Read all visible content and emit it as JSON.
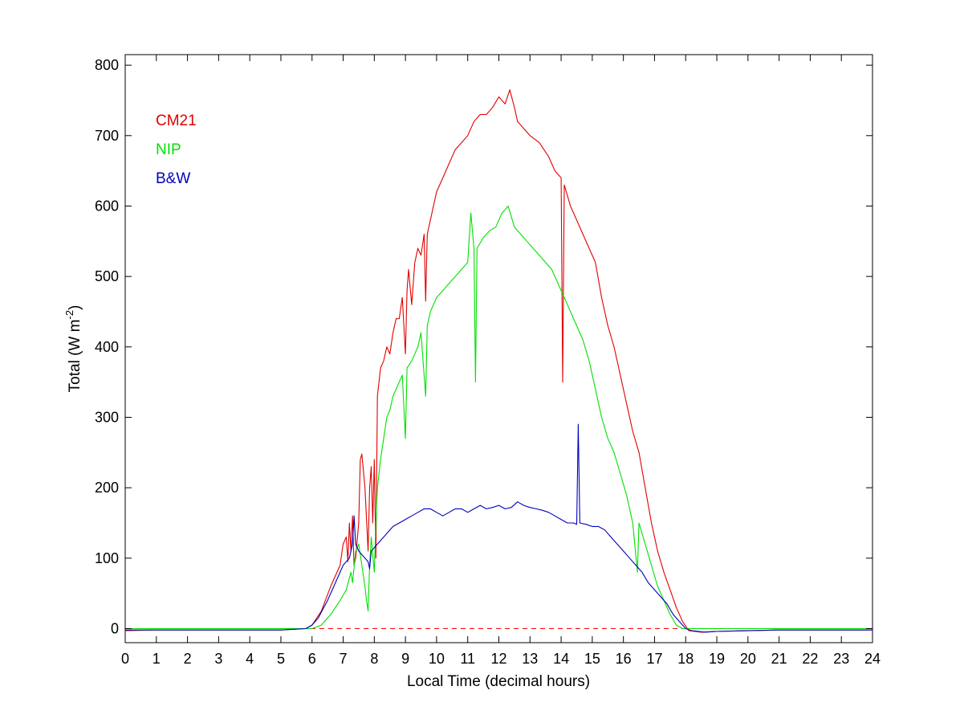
{
  "chart_data": {
    "type": "line",
    "xlabel": "Local Time (decimal hours)",
    "ylabel_main": "Total (W m",
    "ylabel_sup": "-2",
    "ylabel_close": ")",
    "xlim": [
      0,
      24
    ],
    "ylim": [
      -20,
      815
    ],
    "xticks": [
      0,
      1,
      2,
      3,
      4,
      5,
      6,
      7,
      8,
      9,
      10,
      11,
      12,
      13,
      14,
      15,
      16,
      17,
      18,
      19,
      20,
      21,
      22,
      23,
      24
    ],
    "yticks": [
      0,
      100,
      200,
      300,
      400,
      500,
      600,
      700,
      800
    ],
    "grid": false,
    "legend_position": "top-left",
    "zero_line": {
      "y": 0,
      "color": "#ff0000",
      "style": "dashed"
    },
    "series": [
      {
        "name": "CM21",
        "color": "#e00000",
        "points": [
          [
            0,
            -3
          ],
          [
            1,
            -2
          ],
          [
            2,
            -2
          ],
          [
            3,
            -2
          ],
          [
            4,
            -2
          ],
          [
            5,
            -2
          ],
          [
            5.8,
            0
          ],
          [
            6.0,
            5
          ],
          [
            6.3,
            25
          ],
          [
            6.6,
            60
          ],
          [
            6.9,
            90
          ],
          [
            7.0,
            120
          ],
          [
            7.1,
            130
          ],
          [
            7.15,
            95
          ],
          [
            7.2,
            150
          ],
          [
            7.25,
            110
          ],
          [
            7.3,
            160
          ],
          [
            7.35,
            90
          ],
          [
            7.4,
            100
          ],
          [
            7.5,
            150
          ],
          [
            7.55,
            240
          ],
          [
            7.6,
            248
          ],
          [
            7.7,
            200
          ],
          [
            7.8,
            110
          ],
          [
            7.85,
            200
          ],
          [
            7.9,
            230
          ],
          [
            7.95,
            150
          ],
          [
            8.0,
            240
          ],
          [
            8.05,
            100
          ],
          [
            8.1,
            330
          ],
          [
            8.2,
            370
          ],
          [
            8.3,
            380
          ],
          [
            8.4,
            400
          ],
          [
            8.5,
            390
          ],
          [
            8.6,
            420
          ],
          [
            8.7,
            440
          ],
          [
            8.8,
            440
          ],
          [
            8.9,
            470
          ],
          [
            9.0,
            390
          ],
          [
            9.05,
            480
          ],
          [
            9.1,
            510
          ],
          [
            9.2,
            460
          ],
          [
            9.3,
            520
          ],
          [
            9.4,
            540
          ],
          [
            9.5,
            530
          ],
          [
            9.6,
            560
          ],
          [
            9.65,
            465
          ],
          [
            9.7,
            560
          ],
          [
            9.8,
            580
          ],
          [
            9.9,
            600
          ],
          [
            10.0,
            620
          ],
          [
            10.2,
            640
          ],
          [
            10.4,
            660
          ],
          [
            10.6,
            680
          ],
          [
            10.8,
            690
          ],
          [
            11.0,
            700
          ],
          [
            11.2,
            720
          ],
          [
            11.4,
            730
          ],
          [
            11.6,
            730
          ],
          [
            11.8,
            740
          ],
          [
            12.0,
            755
          ],
          [
            12.2,
            745
          ],
          [
            12.35,
            765
          ],
          [
            12.5,
            740
          ],
          [
            12.6,
            720
          ],
          [
            12.8,
            710
          ],
          [
            13.0,
            700
          ],
          [
            13.3,
            690
          ],
          [
            13.6,
            670
          ],
          [
            13.8,
            650
          ],
          [
            14.0,
            640
          ],
          [
            14.05,
            350
          ],
          [
            14.1,
            630
          ],
          [
            14.3,
            600
          ],
          [
            14.5,
            580
          ],
          [
            14.7,
            560
          ],
          [
            14.9,
            540
          ],
          [
            15.1,
            520
          ],
          [
            15.3,
            470
          ],
          [
            15.5,
            430
          ],
          [
            15.7,
            400
          ],
          [
            15.9,
            360
          ],
          [
            16.1,
            320
          ],
          [
            16.3,
            280
          ],
          [
            16.5,
            250
          ],
          [
            16.7,
            200
          ],
          [
            16.9,
            150
          ],
          [
            17.1,
            110
          ],
          [
            17.3,
            80
          ],
          [
            17.5,
            55
          ],
          [
            17.7,
            30
          ],
          [
            17.9,
            10
          ],
          [
            18.1,
            -3
          ],
          [
            18.5,
            -5
          ],
          [
            19.0,
            -4
          ],
          [
            20,
            -3
          ],
          [
            21,
            -2
          ],
          [
            22,
            -2
          ],
          [
            23,
            -2
          ],
          [
            24,
            -2
          ]
        ]
      },
      {
        "name": "NIP",
        "color": "#00e000",
        "points": [
          [
            0,
            0
          ],
          [
            1,
            0
          ],
          [
            2,
            0
          ],
          [
            3,
            0
          ],
          [
            4,
            0
          ],
          [
            5,
            0
          ],
          [
            6.0,
            0
          ],
          [
            6.3,
            5
          ],
          [
            6.6,
            20
          ],
          [
            6.9,
            40
          ],
          [
            7.1,
            55
          ],
          [
            7.25,
            80
          ],
          [
            7.3,
            65
          ],
          [
            7.4,
            110
          ],
          [
            7.5,
            120
          ],
          [
            7.6,
            90
          ],
          [
            7.7,
            60
          ],
          [
            7.75,
            40
          ],
          [
            7.8,
            25
          ],
          [
            7.85,
            90
          ],
          [
            7.9,
            130
          ],
          [
            8.0,
            80
          ],
          [
            8.05,
            150
          ],
          [
            8.1,
            200
          ],
          [
            8.2,
            240
          ],
          [
            8.3,
            270
          ],
          [
            8.4,
            300
          ],
          [
            8.5,
            310
          ],
          [
            8.6,
            330
          ],
          [
            8.7,
            340
          ],
          [
            8.8,
            350
          ],
          [
            8.9,
            360
          ],
          [
            9.0,
            270
          ],
          [
            9.05,
            370
          ],
          [
            9.2,
            380
          ],
          [
            9.4,
            400
          ],
          [
            9.5,
            420
          ],
          [
            9.65,
            330
          ],
          [
            9.7,
            430
          ],
          [
            9.8,
            450
          ],
          [
            10.0,
            470
          ],
          [
            10.2,
            480
          ],
          [
            10.4,
            490
          ],
          [
            10.6,
            500
          ],
          [
            10.8,
            510
          ],
          [
            11.0,
            520
          ],
          [
            11.1,
            590
          ],
          [
            11.2,
            540
          ],
          [
            11.25,
            350
          ],
          [
            11.3,
            540
          ],
          [
            11.5,
            555
          ],
          [
            11.7,
            565
          ],
          [
            11.9,
            570
          ],
          [
            12.1,
            590
          ],
          [
            12.3,
            600
          ],
          [
            12.5,
            570
          ],
          [
            12.7,
            560
          ],
          [
            12.9,
            550
          ],
          [
            13.1,
            540
          ],
          [
            13.3,
            530
          ],
          [
            13.5,
            520
          ],
          [
            13.7,
            510
          ],
          [
            13.9,
            490
          ],
          [
            14.1,
            470
          ],
          [
            14.3,
            450
          ],
          [
            14.5,
            430
          ],
          [
            14.7,
            410
          ],
          [
            14.9,
            380
          ],
          [
            15.1,
            340
          ],
          [
            15.3,
            300
          ],
          [
            15.5,
            270
          ],
          [
            15.7,
            250
          ],
          [
            15.9,
            220
          ],
          [
            16.1,
            190
          ],
          [
            16.3,
            150
          ],
          [
            16.45,
            80
          ],
          [
            16.5,
            150
          ],
          [
            16.7,
            120
          ],
          [
            16.9,
            90
          ],
          [
            17.1,
            60
          ],
          [
            17.3,
            40
          ],
          [
            17.5,
            20
          ],
          [
            17.7,
            5
          ],
          [
            17.9,
            0
          ],
          [
            18.2,
            0
          ],
          [
            19,
            0
          ],
          [
            20,
            0
          ],
          [
            21,
            0
          ],
          [
            22,
            0
          ],
          [
            23,
            0
          ],
          [
            24,
            0
          ]
        ]
      },
      {
        "name": "B&W",
        "color": "#0000c0",
        "points": [
          [
            0,
            -2
          ],
          [
            1,
            -2
          ],
          [
            2,
            -2
          ],
          [
            3,
            -2
          ],
          [
            4,
            -2
          ],
          [
            5,
            -2
          ],
          [
            5.8,
            0
          ],
          [
            6.0,
            5
          ],
          [
            6.2,
            15
          ],
          [
            6.5,
            40
          ],
          [
            6.8,
            70
          ],
          [
            7.0,
            90
          ],
          [
            7.2,
            100
          ],
          [
            7.3,
            120
          ],
          [
            7.35,
            160
          ],
          [
            7.4,
            120
          ],
          [
            7.5,
            110
          ],
          [
            7.6,
            105
          ],
          [
            7.7,
            100
          ],
          [
            7.8,
            95
          ],
          [
            7.85,
            85
          ],
          [
            7.9,
            110
          ],
          [
            8.0,
            115
          ],
          [
            8.2,
            125
          ],
          [
            8.4,
            135
          ],
          [
            8.6,
            145
          ],
          [
            8.8,
            150
          ],
          [
            9.0,
            155
          ],
          [
            9.2,
            160
          ],
          [
            9.4,
            165
          ],
          [
            9.6,
            170
          ],
          [
            9.8,
            170
          ],
          [
            10.0,
            165
          ],
          [
            10.2,
            160
          ],
          [
            10.4,
            165
          ],
          [
            10.6,
            170
          ],
          [
            10.8,
            170
          ],
          [
            11.0,
            165
          ],
          [
            11.2,
            170
          ],
          [
            11.4,
            175
          ],
          [
            11.6,
            170
          ],
          [
            11.8,
            172
          ],
          [
            12.0,
            175
          ],
          [
            12.2,
            170
          ],
          [
            12.4,
            172
          ],
          [
            12.6,
            180
          ],
          [
            12.8,
            175
          ],
          [
            13.0,
            172
          ],
          [
            13.2,
            170
          ],
          [
            13.4,
            168
          ],
          [
            13.6,
            165
          ],
          [
            13.8,
            160
          ],
          [
            14.0,
            155
          ],
          [
            14.2,
            150
          ],
          [
            14.4,
            150
          ],
          [
            14.5,
            148
          ],
          [
            14.55,
            290
          ],
          [
            14.6,
            150
          ],
          [
            14.8,
            148
          ],
          [
            15.0,
            145
          ],
          [
            15.2,
            145
          ],
          [
            15.4,
            140
          ],
          [
            15.6,
            130
          ],
          [
            15.8,
            120
          ],
          [
            16.0,
            110
          ],
          [
            16.2,
            100
          ],
          [
            16.4,
            90
          ],
          [
            16.6,
            80
          ],
          [
            16.8,
            65
          ],
          [
            17.0,
            55
          ],
          [
            17.2,
            45
          ],
          [
            17.4,
            35
          ],
          [
            17.6,
            20
          ],
          [
            17.8,
            10
          ],
          [
            18.0,
            0
          ],
          [
            18.2,
            -3
          ],
          [
            18.6,
            -5
          ],
          [
            19.0,
            -4
          ],
          [
            20,
            -3
          ],
          [
            21,
            -2
          ],
          [
            22,
            -2
          ],
          [
            23,
            -2
          ],
          [
            24,
            -2
          ]
        ]
      }
    ]
  }
}
